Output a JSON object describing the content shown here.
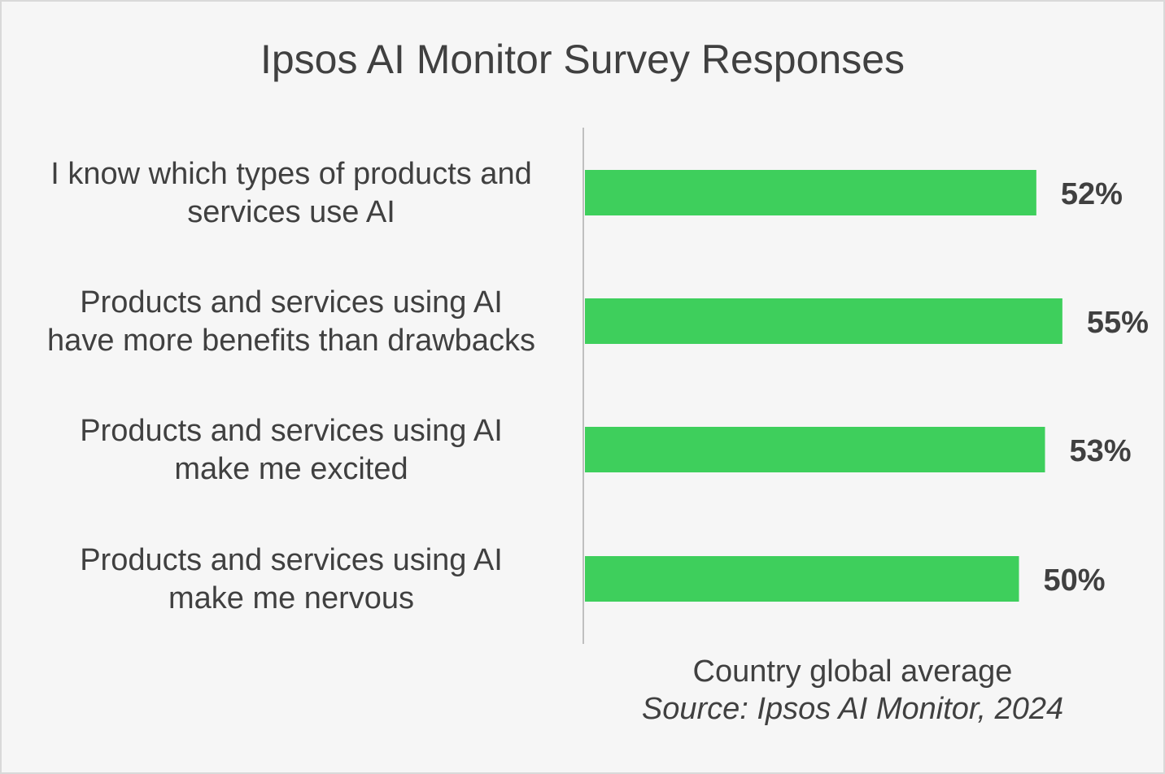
{
  "chart_data": {
    "type": "bar",
    "orientation": "horizontal",
    "title": "Ipsos AI Monitor Survey Responses",
    "categories": [
      [
        "I know which types of products and",
        "services use AI"
      ],
      [
        "Products and services using AI",
        "have more benefits than drawbacks"
      ],
      [
        "Products and services using AI",
        "make me excited"
      ],
      [
        "Products and services using AI",
        "make me nervous"
      ]
    ],
    "values": [
      52,
      55,
      53,
      50
    ],
    "value_labels": [
      "52%",
      "55%",
      "53%",
      "50%"
    ],
    "unit": "%",
    "bar_color": "#3ecf5c",
    "note": "Country global average",
    "source": "Source: Ipsos AI Monitor, 2024",
    "grid": false,
    "legend": "none"
  }
}
